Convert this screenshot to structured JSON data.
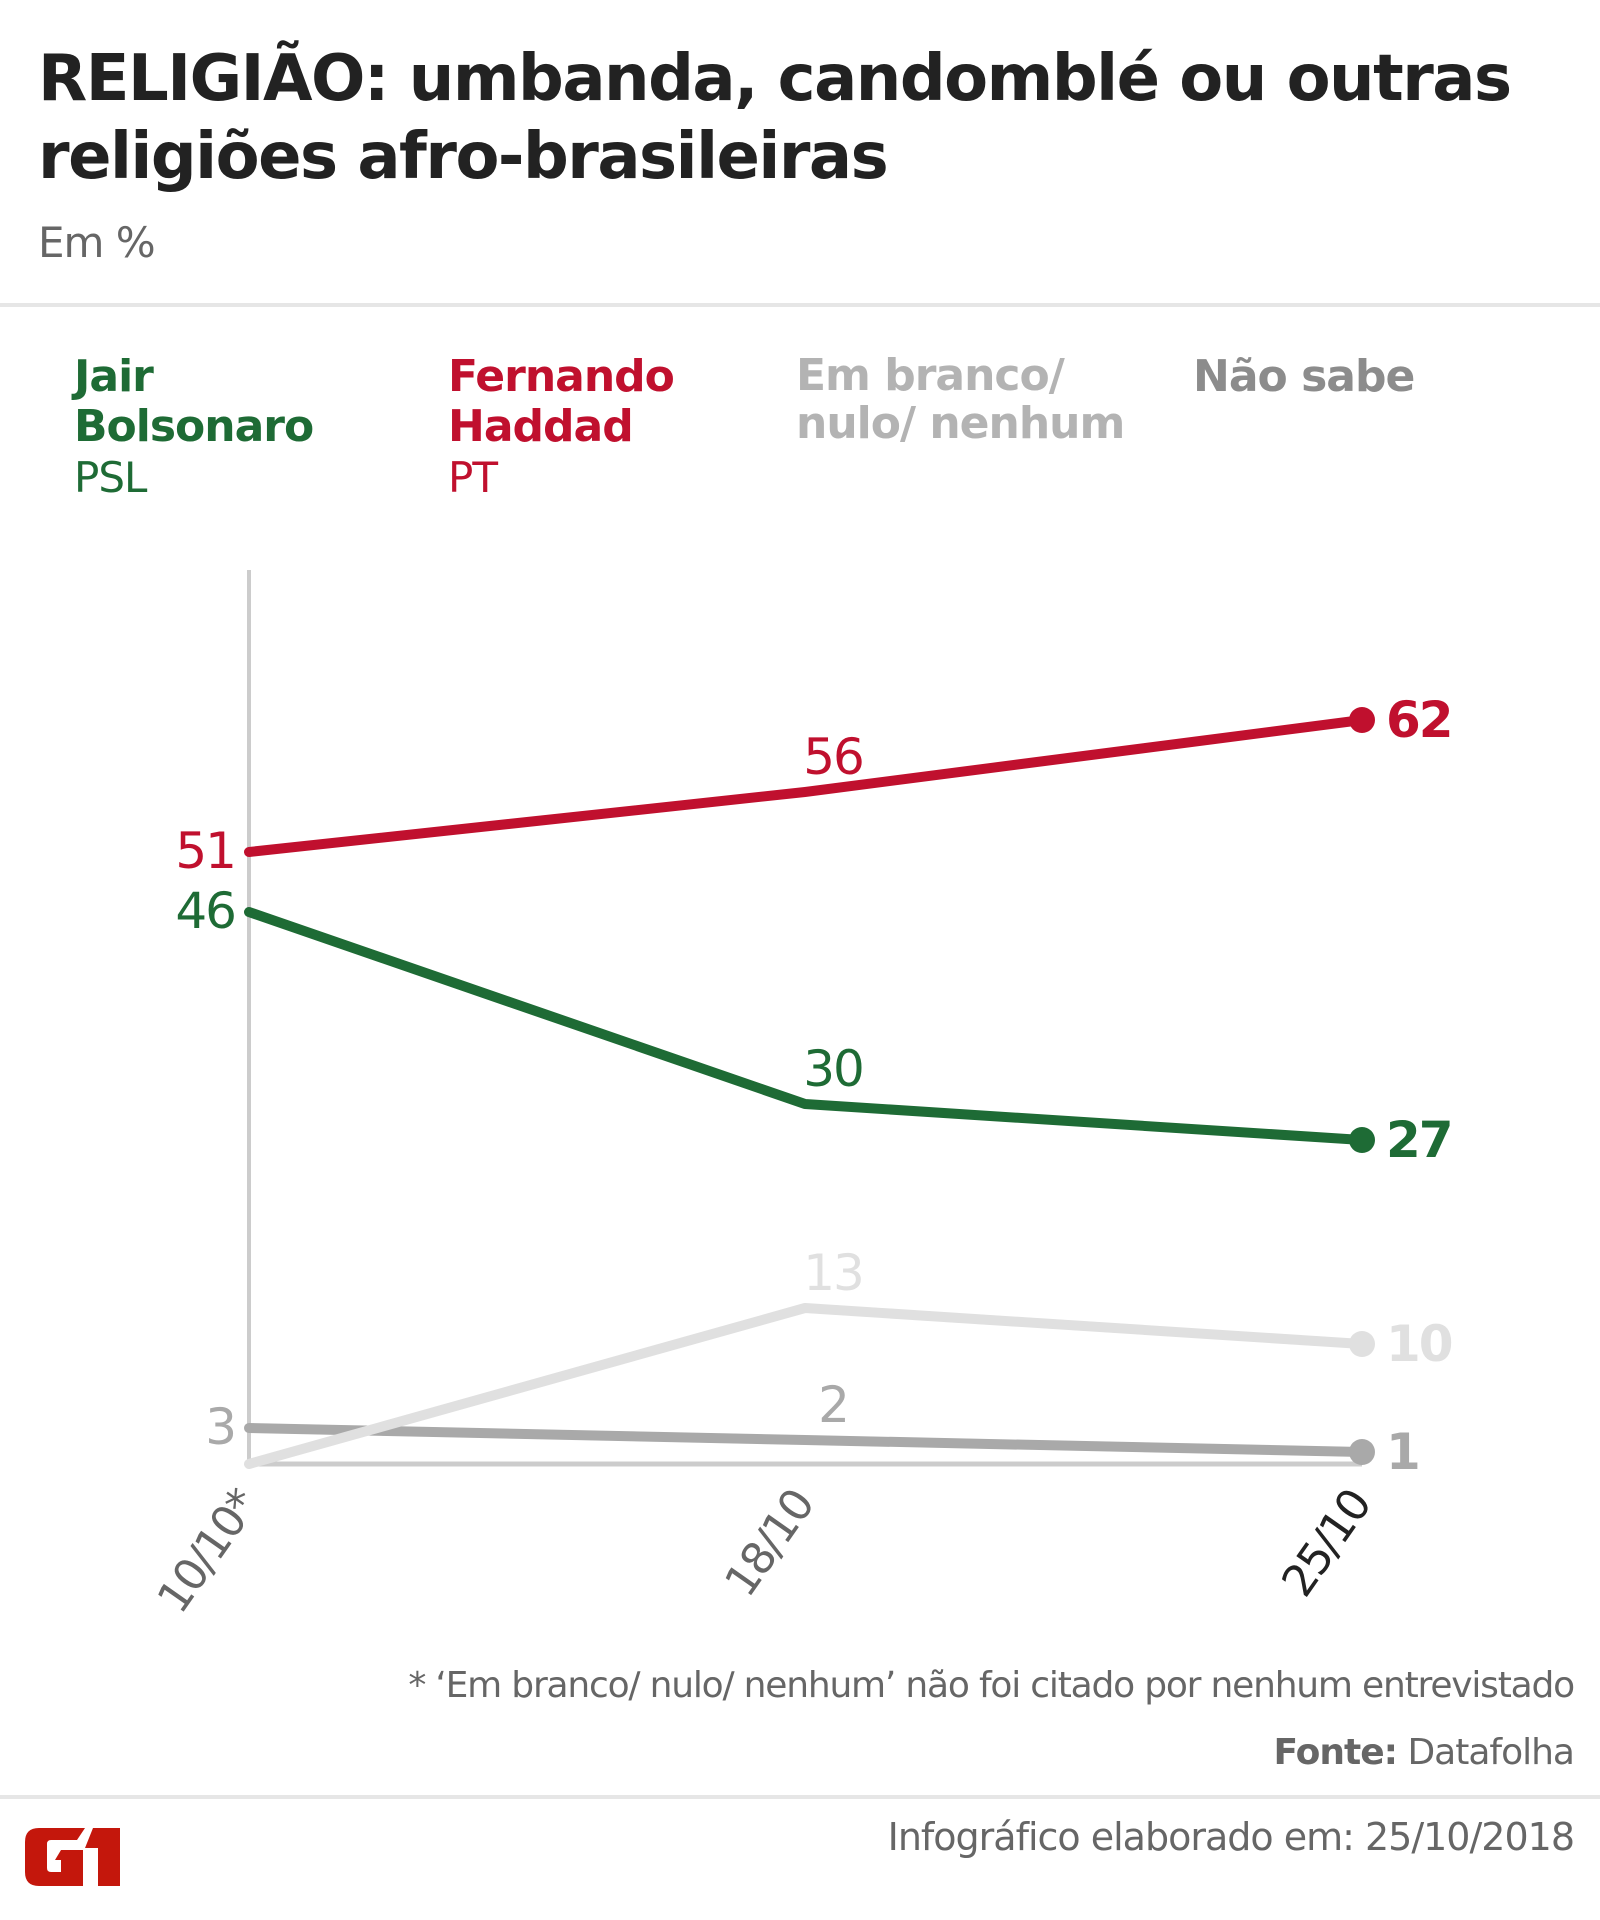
{
  "header": {
    "title": "RELIGIÃO: umbanda, candomblé ou outras religiões afro-brasileiras",
    "subtitle": "Em %"
  },
  "legend": [
    {
      "name": "Jair Bolsonaro",
      "line1": "Jair",
      "line2": "Bolsonaro",
      "party": "PSL",
      "color": "#1e6b35"
    },
    {
      "name": "Fernando Haddad",
      "line1": "Fernando",
      "line2": "Haddad",
      "party": "PT",
      "color": "#c0102e"
    },
    {
      "name": "Em branco/ nulo/ nenhum",
      "line1": "Em branco/",
      "line2": "nulo/ nenhum",
      "party": "",
      "color": "#b3b3b3"
    },
    {
      "name": "Não sabe",
      "line1": "Não sabe",
      "line2": "",
      "party": "",
      "color": "#8c8c8c"
    }
  ],
  "chart_data": {
    "type": "line",
    "title": "RELIGIÃO: umbanda, candomblé ou outras religiões afro-brasileiras",
    "subtitle": "Em %",
    "xlabel": "",
    "ylabel": "",
    "categories": [
      "10/10*",
      "18/10",
      "25/10"
    ],
    "ylim": [
      0,
      62
    ],
    "grid": false,
    "legend_position": "top",
    "series": [
      {
        "name": "Fernando Haddad (PT)",
        "values": [
          51,
          56,
          62
        ],
        "labels": [
          "51",
          "56",
          "62"
        ],
        "color": "#c0102e"
      },
      {
        "name": "Jair Bolsonaro (PSL)",
        "values": [
          46,
          30,
          27
        ],
        "labels": [
          "46",
          "30",
          "27"
        ],
        "color": "#1e6b35"
      },
      {
        "name": "Em branco/ nulo/ nenhum",
        "values": [
          0,
          13,
          10
        ],
        "labels": [
          "",
          "13",
          "10"
        ],
        "color": "#e0e0e0"
      },
      {
        "name": "Não sabe",
        "values": [
          3,
          2,
          1
        ],
        "labels": [
          "3",
          "2",
          "1"
        ],
        "color": "#a9a9a9"
      }
    ],
    "tick_colors": [
      "#666666",
      "#666666",
      "#222222"
    ]
  },
  "footer": {
    "footnote": "* ‘Em branco/ nulo/ nenhum’ não foi citado por nenhum entrevistado",
    "source_label": "Fonte:",
    "source_value": " Datafolha",
    "credit": "Infográfico elaborado em: 25/10/2018",
    "logo": "G1"
  }
}
